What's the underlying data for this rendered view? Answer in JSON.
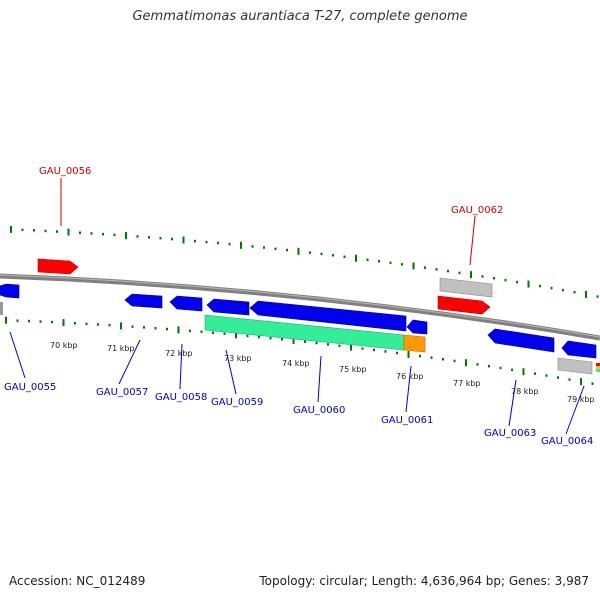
{
  "title": "Gemmatimonas aurantiaca T-27, complete genome",
  "footer": {
    "accession": "Accession: NC_012489",
    "info": "Topology: circular; Length: 4,636,964 bp; Genes: 3,987"
  },
  "colors": {
    "forward_gene": "#ff0000",
    "reverse_gene": "#0000ee",
    "rna_gene": "#bbbbbb",
    "rrna_block": "#33ee99",
    "orange_block": "#ff9900",
    "backbone": "#808080",
    "tick": "#007700",
    "top_label": "#cc0000",
    "bottom_label": "#0000cc"
  },
  "scale_labels": [
    {
      "kbp": 70,
      "text": "70 kbp"
    },
    {
      "kbp": 71,
      "text": "71 kbp"
    },
    {
      "kbp": 72,
      "text": "72 kbp"
    },
    {
      "kbp": 73,
      "text": "73 kbp"
    },
    {
      "kbp": 74,
      "text": "74 kbp"
    },
    {
      "kbp": 75,
      "text": "75 kbp"
    },
    {
      "kbp": 76,
      "text": "76 kbp"
    },
    {
      "kbp": 77,
      "text": "77 kbp"
    },
    {
      "kbp": 78,
      "text": "78 kbp"
    },
    {
      "kbp": 79,
      "text": "79 kbp"
    }
  ],
  "gene_labels": [
    {
      "id": "GAU_0055",
      "strand": "reverse"
    },
    {
      "id": "GAU_0056",
      "strand": "forward"
    },
    {
      "id": "GAU_0057",
      "strand": "reverse"
    },
    {
      "id": "GAU_0058",
      "strand": "reverse"
    },
    {
      "id": "GAU_0059",
      "strand": "reverse"
    },
    {
      "id": "GAU_0060",
      "strand": "reverse"
    },
    {
      "id": "GAU_0061",
      "strand": "reverse"
    },
    {
      "id": "GAU_0062",
      "strand": "forward"
    },
    {
      "id": "GAU_0063",
      "strand": "reverse"
    },
    {
      "id": "GAU_0064",
      "strand": "reverse"
    }
  ]
}
